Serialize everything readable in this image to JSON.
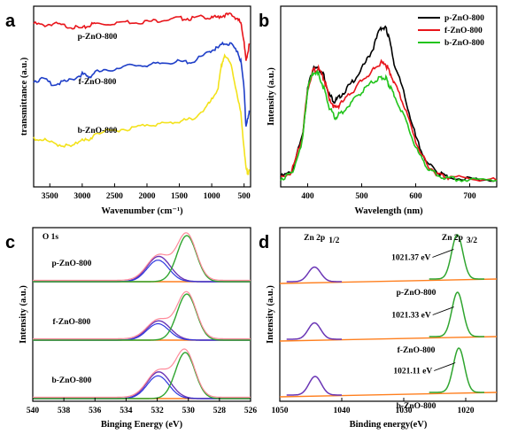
{
  "chart_data": [
    {
      "panel": "a",
      "type": "line",
      "xlabel": "Wavenumber (cm⁻¹)",
      "ylabel": "transmittance (a.u.)",
      "xlim": [
        3750,
        400
      ],
      "x_reversed": true,
      "xticks": [
        3500,
        3000,
        2500,
        2000,
        1500,
        1000,
        500
      ],
      "series": [
        {
          "name": "p-ZnO-800",
          "color": "#e8151b",
          "x": [
            3750,
            3600,
            3450,
            3300,
            3150,
            3000,
            2900,
            2800,
            2600,
            2400,
            2200,
            2000,
            1800,
            1600,
            1450,
            1300,
            1100,
            1000,
            900,
            800,
            700,
            600,
            550,
            500,
            470,
            440,
            420
          ],
          "y": [
            92,
            91,
            92,
            91,
            90,
            89,
            91,
            92,
            92,
            93,
            93,
            93,
            94,
            95,
            95,
            95,
            96,
            95,
            96,
            97,
            97,
            95,
            92,
            82,
            70,
            76,
            80
          ]
        },
        {
          "name": "f-ZnO-800",
          "color": "#1f3fc8",
          "x": [
            3750,
            3600,
            3450,
            3300,
            3150,
            3000,
            2900,
            2800,
            2600,
            2400,
            2200,
            2000,
            1800,
            1600,
            1450,
            1300,
            1100,
            1000,
            900,
            800,
            700,
            600,
            550,
            500,
            470,
            440,
            420
          ],
          "y": [
            59,
            60,
            57,
            58,
            60,
            63,
            61,
            64,
            65,
            67,
            68,
            68,
            69,
            70,
            70,
            70,
            74,
            77,
            78,
            81,
            80,
            76,
            70,
            55,
            32,
            38,
            42
          ]
        },
        {
          "name": "b-ZnO-800",
          "color": "#f3e21b",
          "x": [
            3750,
            3600,
            3450,
            3300,
            3150,
            3000,
            2900,
            2800,
            2600,
            2400,
            2200,
            2000,
            1800,
            1600,
            1450,
            1300,
            1100,
            1000,
            900,
            850,
            800,
            700,
            600,
            550,
            500,
            470,
            440,
            420
          ],
          "y": [
            26,
            25,
            23,
            22,
            21,
            26,
            24,
            29,
            30,
            31,
            32,
            34,
            34,
            35,
            36,
            37,
            43,
            48,
            55,
            68,
            74,
            68,
            50,
            40,
            20,
            8,
            6,
            7
          ]
        }
      ],
      "annotations": [
        "p-ZnO-800",
        "f-ZnO-800",
        "b-ZnO-800"
      ]
    },
    {
      "panel": "b",
      "type": "line",
      "xlabel": "Wavelength (nm)",
      "ylabel": "Intensity (a.u.)",
      "xlim": [
        350,
        750
      ],
      "xticks": [
        400,
        500,
        600,
        700
      ],
      "legend": "top-right",
      "series": [
        {
          "name": "p-ZnO-800",
          "color": "#000000",
          "x": [
            350,
            370,
            390,
            400,
            410,
            420,
            430,
            440,
            450,
            460,
            480,
            500,
            520,
            535,
            545,
            550,
            560,
            580,
            600,
            620,
            640,
            660,
            700,
            750
          ],
          "y": [
            5,
            8,
            30,
            60,
            72,
            73,
            68,
            56,
            52,
            55,
            63,
            72,
            84,
            98,
            97,
            92,
            76,
            55,
            30,
            14,
            8,
            5,
            4,
            3
          ]
        },
        {
          "name": "f-ZnO-800",
          "color": "#e8151b",
          "x": [
            350,
            370,
            390,
            400,
            410,
            420,
            430,
            440,
            450,
            460,
            480,
            500,
            520,
            535,
            545,
            550,
            560,
            580,
            600,
            620,
            640,
            660,
            700,
            750
          ],
          "y": [
            5,
            8,
            30,
            60,
            71,
            72,
            66,
            54,
            48,
            50,
            57,
            65,
            71,
            76,
            74,
            72,
            64,
            48,
            27,
            13,
            7,
            5,
            4,
            3
          ]
        },
        {
          "name": "b-ZnO-800",
          "color": "#22c41c",
          "x": [
            350,
            370,
            390,
            400,
            410,
            420,
            430,
            440,
            450,
            460,
            480,
            500,
            520,
            535,
            545,
            550,
            560,
            580,
            600,
            620,
            640,
            660,
            700,
            750
          ],
          "y": [
            4,
            7,
            27,
            60,
            70,
            69,
            60,
            48,
            42,
            44,
            51,
            58,
            64,
            67,
            66,
            63,
            56,
            42,
            23,
            11,
            6,
            4,
            3,
            3
          ]
        }
      ]
    },
    {
      "panel": "c",
      "type": "line",
      "xlabel": "Binging Energy (eV)",
      "ylabel": "Intensity (a.u.)",
      "xlim": [
        540,
        526
      ],
      "x_reversed": true,
      "xticks": [
        540,
        538,
        536,
        534,
        532,
        530,
        528,
        526
      ],
      "title_label": "O 1s",
      "samples": [
        {
          "name": "p-ZnO-800",
          "peak_lattice_eV": 530.1,
          "height_lattice": 1.0,
          "peak_oxygen_eV": 531.9,
          "height_oxygen": 0.55
        },
        {
          "name": "f-ZnO-800",
          "peak_lattice_eV": 530.1,
          "height_lattice": 1.0,
          "peak_oxygen_eV": 531.9,
          "height_oxygen": 0.42
        },
        {
          "name": "b-ZnO-800",
          "peak_lattice_eV": 530.2,
          "height_lattice": 1.0,
          "peak_oxygen_eV": 531.9,
          "height_oxygen": 0.58
        }
      ],
      "component_colors": {
        "lattice": "#2fa52f",
        "oxygen": "#6a35b5",
        "vacancy": "#2d37e0",
        "envelope": "#ff8b9b",
        "background": "#ff7f1e"
      }
    },
    {
      "panel": "d",
      "type": "line",
      "xlabel": "Binding energy(eV)",
      "ylabel": "Intensity (a.u.)",
      "xlim": [
        1050,
        1015
      ],
      "x_reversed": true,
      "xticks": [
        1050,
        1040,
        1030,
        1020
      ],
      "peak_labels": {
        "zn_2p_half_main": "Zn 2p",
        "zn_2p_half_sub": "1/2",
        "zn_2p_3half_main": "Zn 2p",
        "zn_2p_3half_sub": "3/2"
      },
      "samples": [
        {
          "name": "p-ZnO-800",
          "peak_2p12_eV": 1044.4,
          "height_2p12": 0.33,
          "peak_2p32_eV": 1021.37,
          "height_2p32": 1.0,
          "label": "1021.37 eV"
        },
        {
          "name": "f-ZnO-800",
          "peak_2p12_eV": 1044.4,
          "height_2p12": 0.37,
          "peak_2p32_eV": 1021.33,
          "height_2p32": 1.0,
          "label": "1021.33 eV"
        },
        {
          "name": "b-ZnO-800",
          "peak_2p12_eV": 1044.3,
          "height_2p12": 0.42,
          "peak_2p32_eV": 1021.11,
          "height_2p32": 1.0,
          "label": "1021.11 eV"
        }
      ],
      "component_colors": {
        "zn_half": "#6a35b5",
        "zn_3half": "#2fa52f",
        "baseline": "#ff7f1e"
      }
    }
  ]
}
